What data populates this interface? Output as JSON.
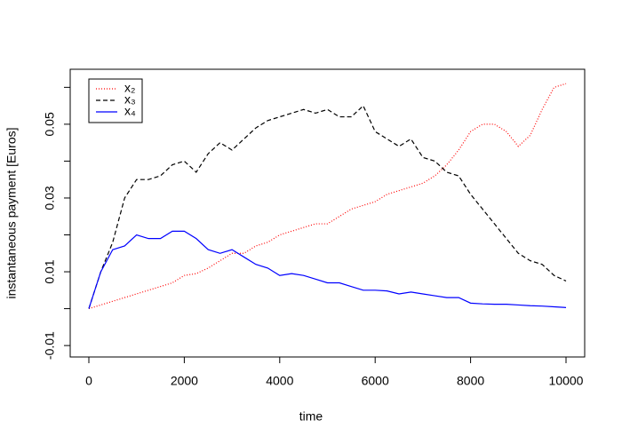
{
  "chart_data": {
    "type": "line",
    "x_label": "time",
    "y_label": "instantaneous payment [Euros]",
    "x": [
      0,
      250,
      500,
      750,
      1000,
      1250,
      1500,
      1750,
      2000,
      2250,
      2500,
      2750,
      3000,
      3250,
      3500,
      3750,
      4000,
      4250,
      4500,
      4750,
      5000,
      5250,
      5500,
      5750,
      6000,
      6250,
      6500,
      6750,
      7000,
      7250,
      7500,
      7750,
      8000,
      8250,
      8500,
      8750,
      9000,
      9250,
      9500,
      9750,
      10000
    ],
    "series": [
      {
        "name": "x₂",
        "color": "#ff0000",
        "dash": "1,2",
        "values": [
          0,
          0.001,
          0.002,
          0.003,
          0.004,
          0.005,
          0.006,
          0.007,
          0.009,
          0.0095,
          0.011,
          0.013,
          0.015,
          0.015,
          0.017,
          0.018,
          0.02,
          0.021,
          0.022,
          0.023,
          0.023,
          0.025,
          0.027,
          0.028,
          0.029,
          0.031,
          0.032,
          0.033,
          0.034,
          0.036,
          0.039,
          0.043,
          0.048,
          0.05,
          0.05,
          0.048,
          0.044,
          0.047,
          0.054,
          0.06,
          0.061
        ]
      },
      {
        "name": "x₃",
        "color": "#000000",
        "dash": "5,3",
        "values": [
          0,
          0.01,
          0.018,
          0.03,
          0.035,
          0.035,
          0.036,
          0.039,
          0.04,
          0.037,
          0.042,
          0.045,
          0.043,
          0.046,
          0.049,
          0.051,
          0.052,
          0.053,
          0.054,
          0.053,
          0.054,
          0.052,
          0.052,
          0.055,
          0.048,
          0.046,
          0.044,
          0.046,
          0.041,
          0.04,
          0.037,
          0.036,
          0.031,
          0.027,
          0.023,
          0.019,
          0.015,
          0.013,
          0.012,
          0.009,
          0.0075
        ]
      },
      {
        "name": "x₄",
        "color": "#0000ff",
        "dash": "none",
        "values": [
          0,
          0.01,
          0.016,
          0.017,
          0.02,
          0.019,
          0.019,
          0.021,
          0.021,
          0.019,
          0.016,
          0.015,
          0.016,
          0.014,
          0.012,
          0.011,
          0.009,
          0.0095,
          0.009,
          0.008,
          0.007,
          0.007,
          0.006,
          0.005,
          0.005,
          0.0048,
          0.004,
          0.0045,
          0.004,
          0.0035,
          0.003,
          0.003,
          0.0015,
          0.0013,
          0.0012,
          0.0012,
          0.001,
          0.0008,
          0.0007,
          0.0005,
          0.0003
        ]
      }
    ],
    "xlim": [
      -391,
      10391
    ],
    "ylim": [
      -0.0131,
      0.0649
    ],
    "xticks": [
      0,
      2000,
      4000,
      6000,
      8000,
      10000
    ],
    "yticks": [
      -0.01,
      {
        "value": 0,
        "label": null
      },
      0.01,
      {
        "value": 0.02,
        "label": null
      },
      0.03,
      {
        "value": 0.04,
        "label": null
      },
      0.05,
      {
        "value": 0.06,
        "label": null
      }
    ],
    "legend": "top-left"
  }
}
